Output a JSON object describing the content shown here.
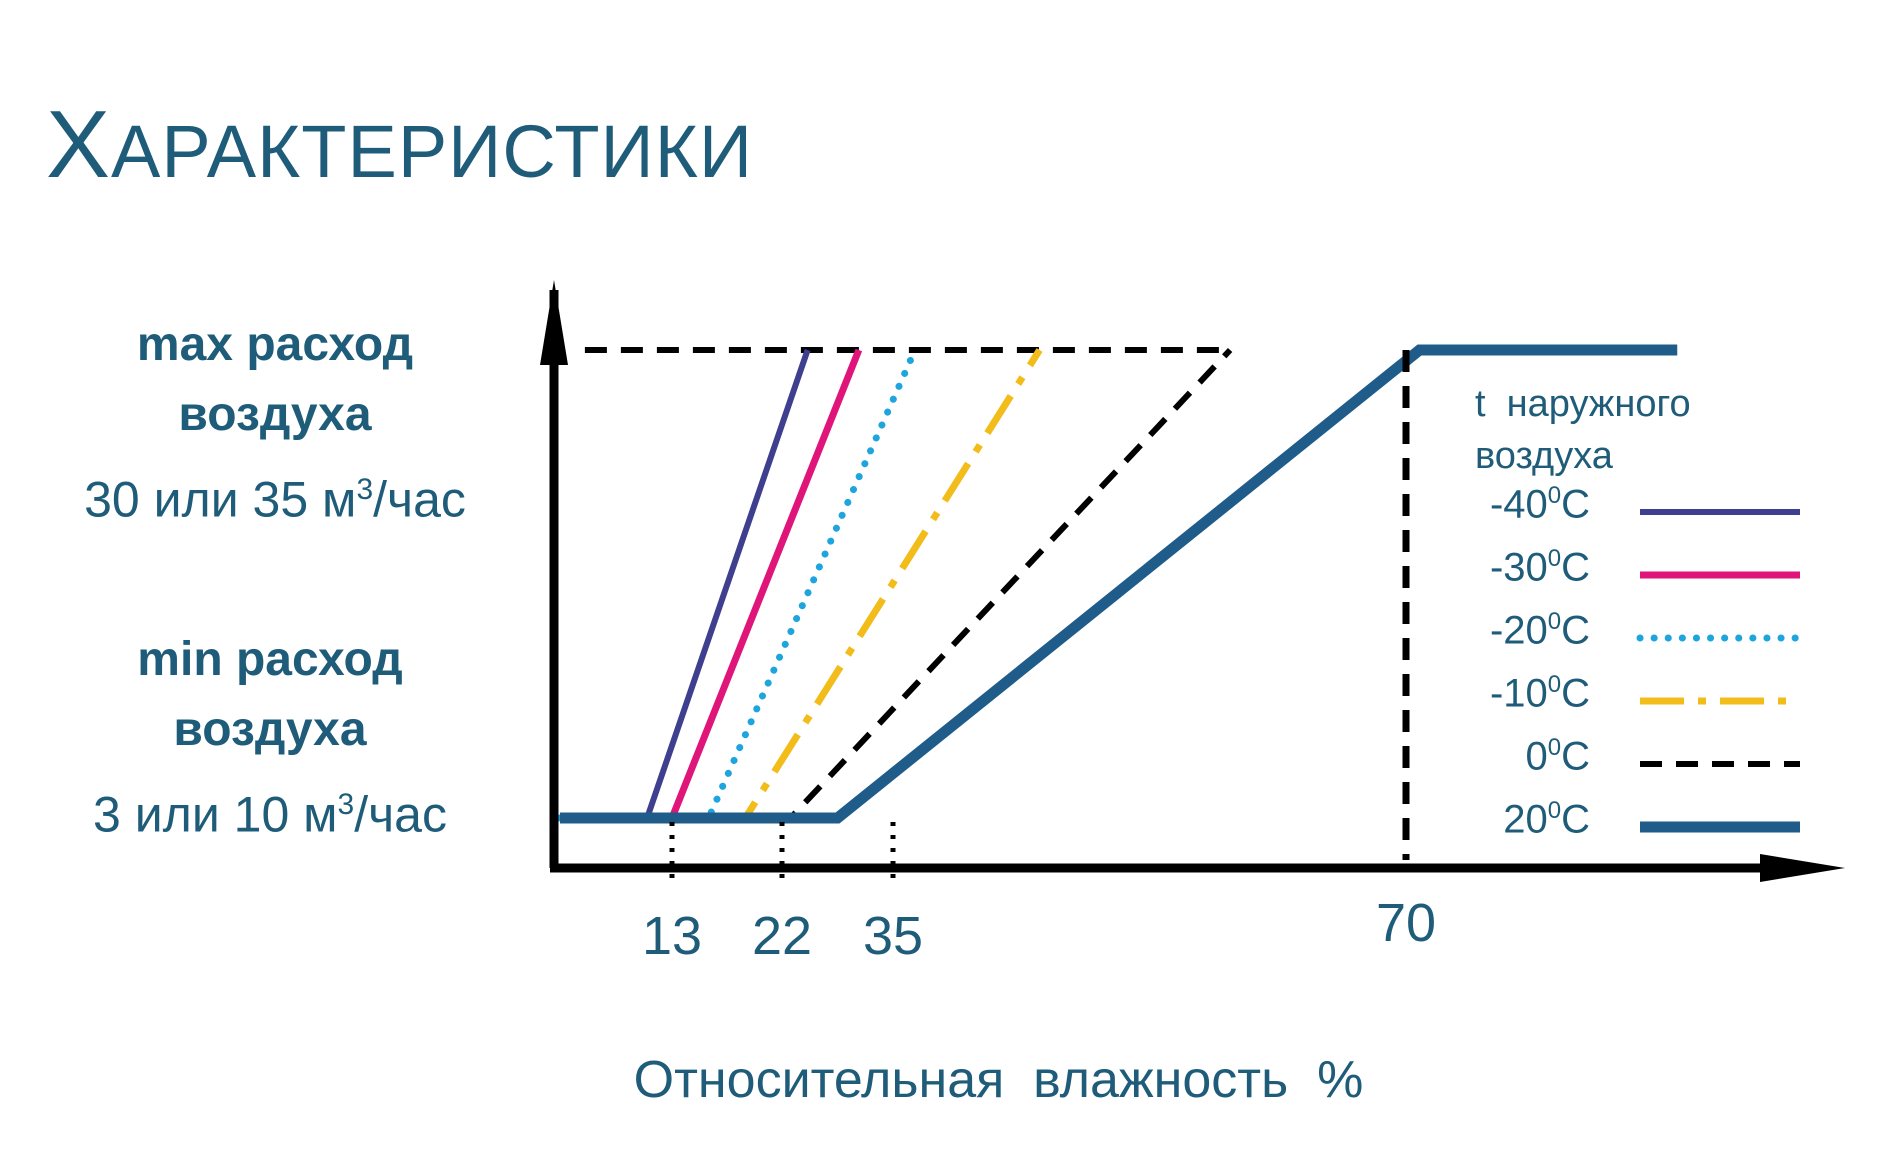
{
  "slide": {
    "title_first": "Х",
    "title_rest": "АРАКТЕРИСТИКИ"
  },
  "y_annotations": {
    "max_line1": "max  расход",
    "max_line2": "воздуха",
    "max_value_prefix": "30 или 35 м",
    "max_value_sup": "3",
    "max_value_suffix": "/час",
    "min_line1": "min  расход",
    "min_line2": "воздуха",
    "min_value_prefix": "3 или 10 м",
    "min_value_sup": "3",
    "min_value_suffix": "/час"
  },
  "colors": {
    "text": "#1f5c7a",
    "axis": "#000000"
  },
  "chart_data": {
    "type": "line",
    "xlabel": "Относительная  влажность  %",
    "ylabel": "",
    "x_ticks": [
      13,
      22,
      35,
      70
    ],
    "y_levels": [
      "min",
      "max"
    ],
    "xlim": [
      -0.5,
      102
    ],
    "ylim": [
      0,
      1
    ],
    "legend_title_line1": "t  наружного",
    "legend_title_line2": "воздуха",
    "legend_position": "right",
    "series": [
      {
        "name_prefix": "-40",
        "name_sup": "0",
        "name_suffix": "C",
        "color": "#3f3f8f",
        "dash": "solid",
        "width": 6,
        "points": [
          [
            -0.5,
            0
          ],
          [
            10,
            0
          ],
          [
            25,
            1
          ]
        ]
      },
      {
        "name_prefix": "-30",
        "name_sup": "0",
        "name_suffix": "C",
        "color": "#e0157a",
        "dash": "solid",
        "width": 7,
        "points": [
          [
            -0.5,
            0
          ],
          [
            13,
            0
          ],
          [
            31,
            1
          ]
        ]
      },
      {
        "name_prefix": "-20",
        "name_sup": "0",
        "name_suffix": "C",
        "color": "#1ea5dd",
        "dash": "dotted",
        "width": 7,
        "points": [
          [
            -0.5,
            0
          ],
          [
            16,
            0
          ],
          [
            36.5,
            1
          ]
        ]
      },
      {
        "name_prefix": "-10",
        "name_sup": "0",
        "name_suffix": "C",
        "color": "#f2bd1b",
        "dash": "dashdot",
        "width": 7,
        "points": [
          [
            -0.5,
            0
          ],
          [
            19,
            0
          ],
          [
            45,
            1
          ]
        ]
      },
      {
        "name_prefix": "0",
        "name_sup": "0",
        "name_suffix": "C",
        "color": "#000000",
        "dash": "dashed",
        "width": 6,
        "points": [
          [
            -0.5,
            0
          ],
          [
            23,
            0
          ],
          [
            58,
            1
          ]
        ]
      },
      {
        "name_prefix": "20",
        "name_sup": "0",
        "name_suffix": "C",
        "color": "#1f5c8a",
        "dash": "solid",
        "width": 11,
        "points": [
          [
            -0.5,
            0
          ],
          [
            28.5,
            0
          ],
          [
            71,
            1
          ],
          [
            90,
            1
          ]
        ]
      }
    ],
    "max_reference_line": {
      "x_from": 2.5,
      "x_to": 58,
      "y": 1
    }
  }
}
